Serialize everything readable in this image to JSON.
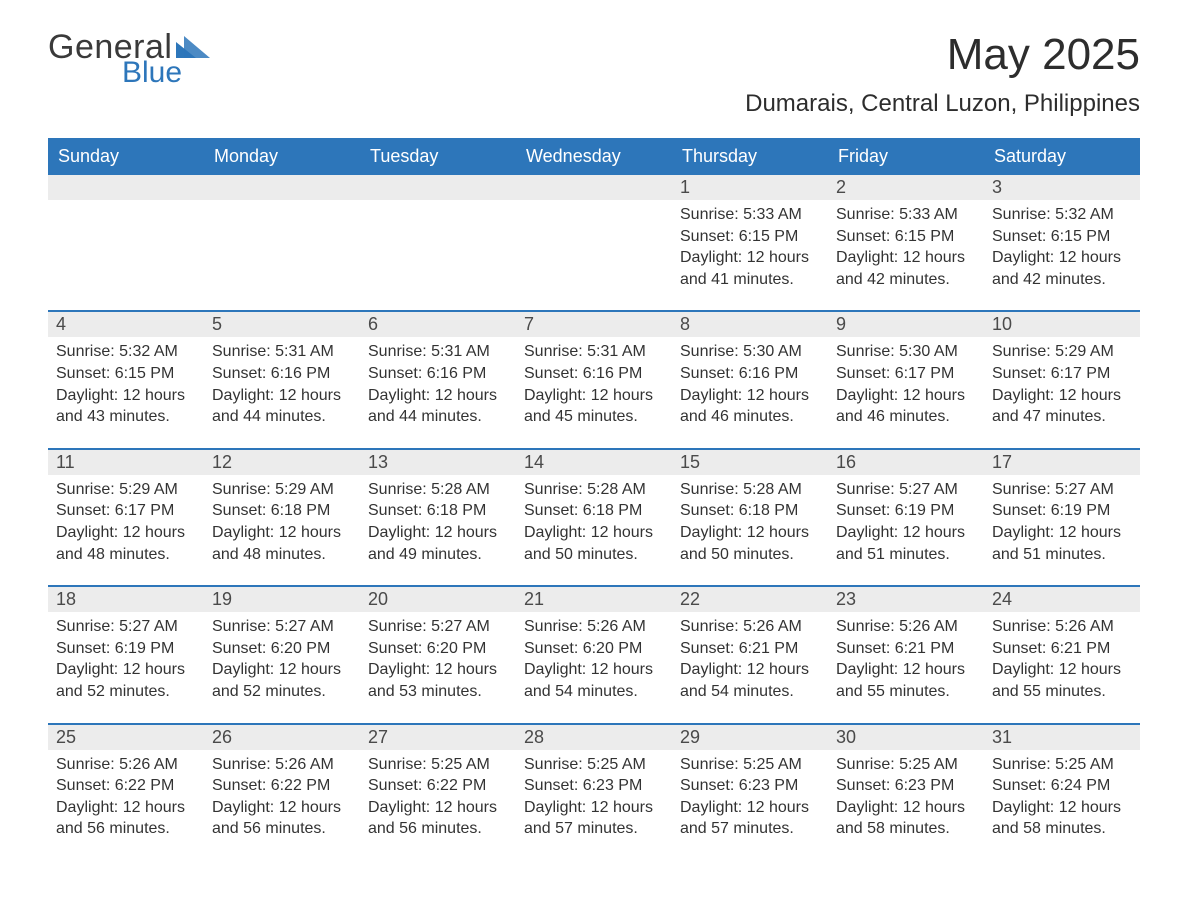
{
  "brand": {
    "word1": "General",
    "word2": "Blue",
    "tri_color": "#2d76ba"
  },
  "title": "May 2025",
  "location": "Dumarais, Central Luzon, Philippines",
  "colors": {
    "header_bg": "#2d76ba",
    "header_fg": "#ffffff",
    "daynum_bg": "#ececec",
    "row_divider": "#2d76ba",
    "text": "#333333",
    "background": "#ffffff"
  },
  "columns": [
    "Sunday",
    "Monday",
    "Tuesday",
    "Wednesday",
    "Thursday",
    "Friday",
    "Saturday"
  ],
  "weeks": [
    [
      {
        "blank": true
      },
      {
        "blank": true
      },
      {
        "blank": true
      },
      {
        "blank": true
      },
      {
        "n": "1",
        "sr": "5:33 AM",
        "ss": "6:15 PM",
        "dl": "12 hours and 41 minutes."
      },
      {
        "n": "2",
        "sr": "5:33 AM",
        "ss": "6:15 PM",
        "dl": "12 hours and 42 minutes."
      },
      {
        "n": "3",
        "sr": "5:32 AM",
        "ss": "6:15 PM",
        "dl": "12 hours and 42 minutes."
      }
    ],
    [
      {
        "n": "4",
        "sr": "5:32 AM",
        "ss": "6:15 PM",
        "dl": "12 hours and 43 minutes."
      },
      {
        "n": "5",
        "sr": "5:31 AM",
        "ss": "6:16 PM",
        "dl": "12 hours and 44 minutes."
      },
      {
        "n": "6",
        "sr": "5:31 AM",
        "ss": "6:16 PM",
        "dl": "12 hours and 44 minutes."
      },
      {
        "n": "7",
        "sr": "5:31 AM",
        "ss": "6:16 PM",
        "dl": "12 hours and 45 minutes."
      },
      {
        "n": "8",
        "sr": "5:30 AM",
        "ss": "6:16 PM",
        "dl": "12 hours and 46 minutes."
      },
      {
        "n": "9",
        "sr": "5:30 AM",
        "ss": "6:17 PM",
        "dl": "12 hours and 46 minutes."
      },
      {
        "n": "10",
        "sr": "5:29 AM",
        "ss": "6:17 PM",
        "dl": "12 hours and 47 minutes."
      }
    ],
    [
      {
        "n": "11",
        "sr": "5:29 AM",
        "ss": "6:17 PM",
        "dl": "12 hours and 48 minutes."
      },
      {
        "n": "12",
        "sr": "5:29 AM",
        "ss": "6:18 PM",
        "dl": "12 hours and 48 minutes."
      },
      {
        "n": "13",
        "sr": "5:28 AM",
        "ss": "6:18 PM",
        "dl": "12 hours and 49 minutes."
      },
      {
        "n": "14",
        "sr": "5:28 AM",
        "ss": "6:18 PM",
        "dl": "12 hours and 50 minutes."
      },
      {
        "n": "15",
        "sr": "5:28 AM",
        "ss": "6:18 PM",
        "dl": "12 hours and 50 minutes."
      },
      {
        "n": "16",
        "sr": "5:27 AM",
        "ss": "6:19 PM",
        "dl": "12 hours and 51 minutes."
      },
      {
        "n": "17",
        "sr": "5:27 AM",
        "ss": "6:19 PM",
        "dl": "12 hours and 51 minutes."
      }
    ],
    [
      {
        "n": "18",
        "sr": "5:27 AM",
        "ss": "6:19 PM",
        "dl": "12 hours and 52 minutes."
      },
      {
        "n": "19",
        "sr": "5:27 AM",
        "ss": "6:20 PM",
        "dl": "12 hours and 52 minutes."
      },
      {
        "n": "20",
        "sr": "5:27 AM",
        "ss": "6:20 PM",
        "dl": "12 hours and 53 minutes."
      },
      {
        "n": "21",
        "sr": "5:26 AM",
        "ss": "6:20 PM",
        "dl": "12 hours and 54 minutes."
      },
      {
        "n": "22",
        "sr": "5:26 AM",
        "ss": "6:21 PM",
        "dl": "12 hours and 54 minutes."
      },
      {
        "n": "23",
        "sr": "5:26 AM",
        "ss": "6:21 PM",
        "dl": "12 hours and 55 minutes."
      },
      {
        "n": "24",
        "sr": "5:26 AM",
        "ss": "6:21 PM",
        "dl": "12 hours and 55 minutes."
      }
    ],
    [
      {
        "n": "25",
        "sr": "5:26 AM",
        "ss": "6:22 PM",
        "dl": "12 hours and 56 minutes."
      },
      {
        "n": "26",
        "sr": "5:26 AM",
        "ss": "6:22 PM",
        "dl": "12 hours and 56 minutes."
      },
      {
        "n": "27",
        "sr": "5:25 AM",
        "ss": "6:22 PM",
        "dl": "12 hours and 56 minutes."
      },
      {
        "n": "28",
        "sr": "5:25 AM",
        "ss": "6:23 PM",
        "dl": "12 hours and 57 minutes."
      },
      {
        "n": "29",
        "sr": "5:25 AM",
        "ss": "6:23 PM",
        "dl": "12 hours and 57 minutes."
      },
      {
        "n": "30",
        "sr": "5:25 AM",
        "ss": "6:23 PM",
        "dl": "12 hours and 58 minutes."
      },
      {
        "n": "31",
        "sr": "5:25 AM",
        "ss": "6:24 PM",
        "dl": "12 hours and 58 minutes."
      }
    ]
  ],
  "labels": {
    "sunrise": "Sunrise: ",
    "sunset": "Sunset: ",
    "daylight": "Daylight: "
  }
}
